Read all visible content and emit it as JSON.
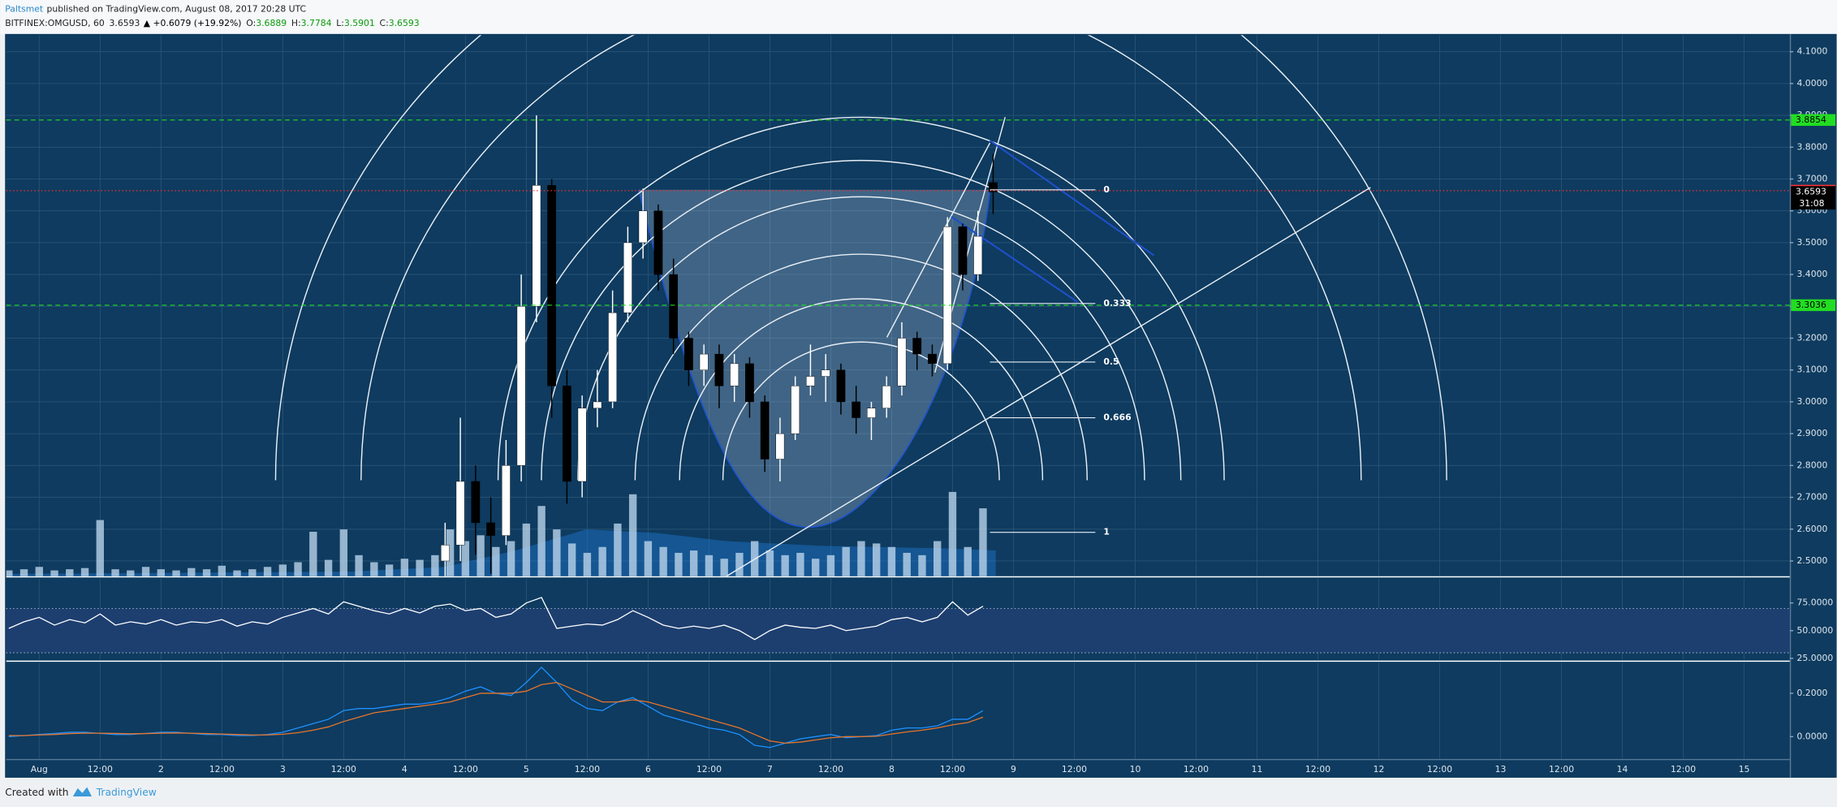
{
  "header": {
    "author": "Paltsmet",
    "published": "published on TradingView.com, August 08, 2017 20:28 UTC",
    "symbol": "BITFINEX:OMGUSD, 60",
    "last": "3.6593",
    "change": "▲ +0.6079 (+19.92%)",
    "o_label": "O:",
    "o": "3.6889",
    "h_label": "H:",
    "h": "3.7784",
    "l_label": "L:",
    "l": "3.5901",
    "c_label": "C:",
    "c": "3.6593"
  },
  "footer": {
    "created": "Created with",
    "brand": "TradingView"
  },
  "chart_data": [
    {
      "type": "candlestick",
      "x": [
        80,
        83,
        86,
        89,
        92,
        95,
        98,
        101,
        104,
        107,
        110,
        113,
        116,
        119,
        122,
        125,
        128,
        131,
        134,
        137,
        140,
        143,
        146,
        149,
        152,
        155,
        158,
        161,
        164,
        167,
        170,
        173,
        176,
        179,
        182,
        185,
        188
      ],
      "open": [
        2.5,
        2.55,
        2.75,
        2.62,
        2.58,
        2.8,
        3.3,
        3.68,
        3.05,
        2.75,
        2.98,
        3.0,
        3.28,
        3.5,
        3.6,
        3.4,
        3.2,
        3.1,
        3.15,
        3.05,
        3.12,
        3.0,
        2.82,
        2.9,
        3.05,
        3.08,
        3.1,
        3.0,
        2.95,
        2.98,
        3.05,
        3.2,
        3.15,
        3.12,
        3.55,
        3.4,
        3.6889
      ],
      "high": [
        2.62,
        2.95,
        2.8,
        2.7,
        2.88,
        3.4,
        3.9,
        3.7,
        3.1,
        3.02,
        3.1,
        3.35,
        3.55,
        3.67,
        3.62,
        3.45,
        3.22,
        3.18,
        3.18,
        3.15,
        3.14,
        3.02,
        2.95,
        3.08,
        3.18,
        3.15,
        3.12,
        3.05,
        3.0,
        3.08,
        3.25,
        3.22,
        3.18,
        3.58,
        3.56,
        3.6,
        3.7784
      ],
      "low": [
        2.45,
        2.5,
        2.52,
        2.46,
        2.55,
        2.75,
        3.25,
        2.95,
        2.68,
        2.7,
        2.92,
        2.98,
        3.25,
        3.45,
        3.35,
        3.15,
        3.05,
        3.05,
        2.98,
        3.0,
        2.95,
        2.78,
        2.75,
        2.88,
        3.02,
        3.0,
        2.96,
        2.9,
        2.88,
        2.95,
        3.02,
        3.1,
        3.08,
        3.1,
        3.35,
        3.38,
        3.5901
      ],
      "close": [
        2.55,
        2.75,
        2.62,
        2.58,
        2.8,
        3.3,
        3.68,
        3.05,
        2.75,
        2.98,
        3.0,
        3.28,
        3.5,
        3.6,
        3.4,
        3.2,
        3.1,
        3.15,
        3.05,
        3.12,
        3.0,
        2.82,
        2.9,
        3.05,
        3.08,
        3.1,
        3.0,
        2.95,
        2.98,
        3.05,
        3.2,
        3.15,
        3.12,
        3.55,
        3.4,
        3.52,
        3.6593
      ],
      "up_color": "#ffffff",
      "down_color": "#000000",
      "volume": {
        "color": "#b9d3ea",
        "x": [
          -6,
          -3,
          0,
          3,
          6,
          9,
          12,
          15,
          18,
          21,
          24,
          27,
          30,
          33,
          36,
          39,
          42,
          45,
          48,
          51,
          54,
          57,
          60,
          63,
          66,
          69,
          72,
          75,
          78,
          81,
          84,
          87,
          90,
          93,
          96,
          99,
          102,
          105,
          108,
          111,
          114,
          117,
          120,
          123,
          126,
          129,
          132,
          135,
          138,
          141,
          144,
          147,
          150,
          153,
          156,
          159,
          162,
          165,
          168,
          171,
          174,
          177,
          180,
          183,
          186
        ],
        "values": [
          5,
          6,
          8,
          5,
          6,
          7,
          48,
          6,
          5,
          8,
          6,
          5,
          7,
          6,
          9,
          5,
          6,
          8,
          10,
          12,
          38,
          14,
          40,
          18,
          12,
          10,
          15,
          14,
          18,
          40,
          30,
          35,
          25,
          30,
          45,
          60,
          40,
          28,
          20,
          25,
          45,
          70,
          30,
          25,
          20,
          22,
          18,
          15,
          20,
          30,
          22,
          18,
          20,
          15,
          18,
          25,
          30,
          28,
          25,
          20,
          18,
          30,
          72,
          25,
          58
        ]
      },
      "xlim": [
        -6.5,
        345
      ],
      "xticks": [
        {
          "value": 0,
          "label": "Aug"
        },
        {
          "value": 12,
          "label": "12:00"
        },
        {
          "value": 24,
          "label": "2"
        },
        {
          "value": 36,
          "label": "12:00"
        },
        {
          "value": 48,
          "label": "3"
        },
        {
          "value": 60,
          "label": "12:00"
        },
        {
          "value": 72,
          "label": "4"
        },
        {
          "value": 84,
          "label": "12:00"
        },
        {
          "value": 96,
          "label": "5"
        },
        {
          "value": 108,
          "label": "12:00"
        },
        {
          "value": 120,
          "label": "6"
        },
        {
          "value": 132,
          "label": "12:00"
        },
        {
          "value": 144,
          "label": "7"
        },
        {
          "value": 156,
          "label": "12:00"
        },
        {
          "value": 168,
          "label": "8"
        },
        {
          "value": 180,
          "label": "12:00"
        },
        {
          "value": 192,
          "label": "9"
        },
        {
          "value": 204,
          "label": "12:00"
        },
        {
          "value": 216,
          "label": "10"
        },
        {
          "value": 228,
          "label": "12:00"
        },
        {
          "value": 240,
          "label": "11"
        },
        {
          "value": 252,
          "label": "12:00"
        },
        {
          "value": 264,
          "label": "12"
        },
        {
          "value": 276,
          "label": "12:00"
        },
        {
          "value": 288,
          "label": "13"
        },
        {
          "value": 300,
          "label": "12:00"
        },
        {
          "value": 312,
          "label": "14"
        },
        {
          "value": 324,
          "label": "12:00"
        },
        {
          "value": 336,
          "label": "15"
        }
      ],
      "ylim": [
        2.452,
        4.152
      ],
      "yticks": [
        {
          "value": 2.5,
          "label": "2.5000"
        },
        {
          "value": 2.6,
          "label": "2.6000"
        },
        {
          "value": 2.7,
          "label": "2.7000"
        },
        {
          "value": 2.8,
          "label": "2.8000"
        },
        {
          "value": 2.9,
          "label": "2.9000"
        },
        {
          "value": 3.0,
          "label": "3.0000"
        },
        {
          "value": 3.1,
          "label": "3.1000"
        },
        {
          "value": 3.2,
          "label": "3.2000"
        },
        {
          "value": 3.3,
          "label": "3.3000"
        },
        {
          "value": 3.4,
          "label": "3.4000"
        },
        {
          "value": 3.5,
          "label": "3.5000"
        },
        {
          "value": 3.6,
          "label": "3.6000"
        },
        {
          "value": 3.7,
          "label": "3.7000"
        },
        {
          "value": 3.8,
          "label": "3.8000"
        },
        {
          "value": 3.9,
          "label": "3.9000"
        },
        {
          "value": 4.0,
          "label": "4.0000"
        },
        {
          "value": 4.1,
          "label": "4.1000"
        }
      ],
      "grid": true,
      "price_lines": [
        {
          "value": 3.8854,
          "color": "#22dd22",
          "style": "dashed"
        },
        {
          "value": 3.3036,
          "color": "#22dd22",
          "style": "dashed"
        },
        {
          "value": 3.6633,
          "color": "#ff3030",
          "style": "dotted"
        }
      ],
      "last_price": {
        "value": 3.6593,
        "countdown": "31:08",
        "color": "#000000"
      },
      "fib_levels": [
        {
          "ratio": 0,
          "price": 3.666
        },
        {
          "ratio": 0.333,
          "price": 3.309
        },
        {
          "ratio": 0.5,
          "price": 3.125
        },
        {
          "ratio": 0.666,
          "price": 2.95
        },
        {
          "ratio": 1,
          "price": 2.59
        }
      ]
    },
    {
      "type": "line",
      "x": [
        -6,
        -3,
        0,
        3,
        6,
        9,
        12,
        15,
        18,
        21,
        24,
        27,
        30,
        33,
        36,
        39,
        42,
        45,
        48,
        51,
        54,
        57,
        60,
        63,
        66,
        69,
        72,
        75,
        78,
        81,
        84,
        87,
        90,
        93,
        96,
        99,
        102,
        105,
        108,
        111,
        114,
        117,
        120,
        123,
        126,
        129,
        132,
        135,
        138,
        141,
        144,
        147,
        150,
        153,
        156,
        159,
        162,
        165,
        168,
        171,
        174,
        177,
        180,
        183,
        186
      ],
      "series": [
        {
          "color": "#ffffff",
          "values": [
            52,
            58,
            62,
            55,
            60,
            57,
            65,
            55,
            58,
            56,
            60,
            55,
            58,
            57,
            60,
            54,
            58,
            56,
            62,
            66,
            70,
            65,
            76,
            72,
            68,
            65,
            70,
            66,
            72,
            74,
            68,
            70,
            62,
            65,
            75,
            80,
            52,
            54,
            56,
            55,
            60,
            68,
            62,
            55,
            52,
            54,
            52,
            55,
            50,
            42,
            50,
            55,
            53,
            52,
            55,
            50,
            52,
            54,
            60,
            62,
            58,
            62,
            76,
            64,
            72
          ]
        }
      ],
      "band": [
        30,
        70
      ],
      "ylim": [
        24,
        97
      ],
      "yticks": [
        {
          "value": 25,
          "label": "25.0000"
        },
        {
          "value": 50,
          "label": "50.0000"
        },
        {
          "value": 75,
          "label": "75.0000"
        }
      ]
    },
    {
      "type": "line",
      "x": [
        -6,
        -3,
        0,
        3,
        6,
        9,
        12,
        15,
        18,
        21,
        24,
        27,
        30,
        33,
        36,
        39,
        42,
        45,
        48,
        51,
        54,
        57,
        60,
        63,
        66,
        69,
        72,
        75,
        78,
        81,
        84,
        87,
        90,
        93,
        96,
        99,
        102,
        105,
        108,
        111,
        114,
        117,
        120,
        123,
        126,
        129,
        132,
        135,
        138,
        141,
        144,
        147,
        150,
        153,
        156,
        159,
        162,
        165,
        168,
        171,
        174,
        177,
        180,
        183,
        186
      ],
      "series": [
        {
          "color": "#1e90ff",
          "values": [
            0,
            0.005,
            0.01,
            0.015,
            0.02,
            0.02,
            0.015,
            0.01,
            0.01,
            0.015,
            0.02,
            0.02,
            0.015,
            0.01,
            0.01,
            0.005,
            0.005,
            0.01,
            0.02,
            0.04,
            0.06,
            0.08,
            0.12,
            0.13,
            0.13,
            0.14,
            0.15,
            0.15,
            0.16,
            0.18,
            0.21,
            0.23,
            0.2,
            0.19,
            0.25,
            0.32,
            0.25,
            0.17,
            0.13,
            0.12,
            0.16,
            0.18,
            0.14,
            0.1,
            0.08,
            0.06,
            0.04,
            0.03,
            0.01,
            -0.04,
            -0.05,
            -0.03,
            -0.01,
            0.0,
            0.01,
            -0.005,
            0.0,
            0.005,
            0.03,
            0.04,
            0.04,
            0.05,
            0.08,
            0.08,
            0.12
          ]
        },
        {
          "color": "#e8742a",
          "values": [
            0.005,
            0.005,
            0.008,
            0.01,
            0.014,
            0.016,
            0.016,
            0.015,
            0.013,
            0.014,
            0.016,
            0.017,
            0.016,
            0.014,
            0.012,
            0.01,
            0.008,
            0.008,
            0.011,
            0.018,
            0.03,
            0.045,
            0.07,
            0.09,
            0.11,
            0.12,
            0.13,
            0.14,
            0.15,
            0.16,
            0.18,
            0.2,
            0.2,
            0.2,
            0.21,
            0.24,
            0.25,
            0.22,
            0.19,
            0.16,
            0.16,
            0.17,
            0.16,
            0.14,
            0.12,
            0.1,
            0.08,
            0.06,
            0.04,
            0.01,
            -0.02,
            -0.03,
            -0.025,
            -0.015,
            -0.005,
            0.0,
            0.0,
            0.002,
            0.012,
            0.022,
            0.03,
            0.04,
            0.055,
            0.065,
            0.09
          ]
        }
      ],
      "ylim": [
        -0.103,
        0.34
      ],
      "yticks": [
        {
          "value": 0,
          "label": "0.0000"
        },
        {
          "value": 0.2,
          "label": "0.2000"
        }
      ]
    }
  ]
}
